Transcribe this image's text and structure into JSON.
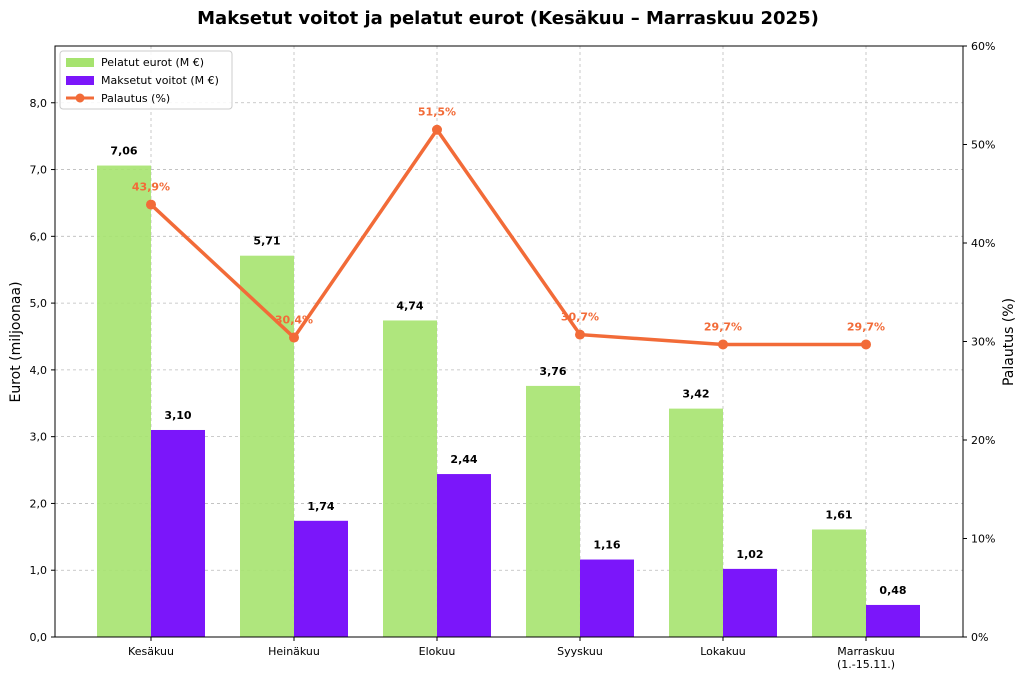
{
  "chart_data": {
    "type": "bar",
    "title": "Maksetut voitot ja pelatut eurot (Kesäkuu – Marraskuu 2025)",
    "categories": [
      "Kesäkuu",
      "Heinäkuu",
      "Elokuu",
      "Syyskuu",
      "Lokakuu",
      "Marraskuu\n(1.-15.11.)"
    ],
    "ylabel": "Eurot (miljoonaa)",
    "y2label": "Palautus (%)",
    "ylim": [
      0,
      8.85
    ],
    "y2lim": [
      0,
      60
    ],
    "yticks": [
      "0,0",
      "1,0",
      "2,0",
      "3,0",
      "4,0",
      "5,0",
      "6,0",
      "7,0",
      "8,0"
    ],
    "y2ticks": [
      "0%",
      "10%",
      "20%",
      "30%",
      "40%",
      "50%",
      "60%"
    ],
    "grid": true,
    "legend_position": "top-left",
    "series": [
      {
        "name": "Pelatut eurot (M €)",
        "type": "bar",
        "axis": "left",
        "color": "#a6e36f",
        "values": [
          7.06,
          5.71,
          4.74,
          3.76,
          3.42,
          1.61
        ],
        "labels": [
          "7,06",
          "5,71",
          "4,74",
          "3,76",
          "3,42",
          "1,61"
        ]
      },
      {
        "name": "Maksetut voitot (M €)",
        "type": "bar",
        "axis": "left",
        "color": "#7b16fa",
        "values": [
          3.1,
          1.74,
          2.44,
          1.16,
          1.02,
          0.48
        ],
        "labels": [
          "3,10",
          "1,74",
          "2,44",
          "1,16",
          "1,02",
          "0,48"
        ]
      },
      {
        "name": "Palautus (%)",
        "type": "line",
        "axis": "right",
        "color": "#f26b38",
        "values": [
          43.9,
          30.4,
          51.5,
          30.7,
          29.7,
          29.7
        ],
        "labels": [
          "43,9%",
          "30,4%",
          "51,5%",
          "30,7%",
          "29,7%",
          "29,7%"
        ]
      }
    ]
  }
}
